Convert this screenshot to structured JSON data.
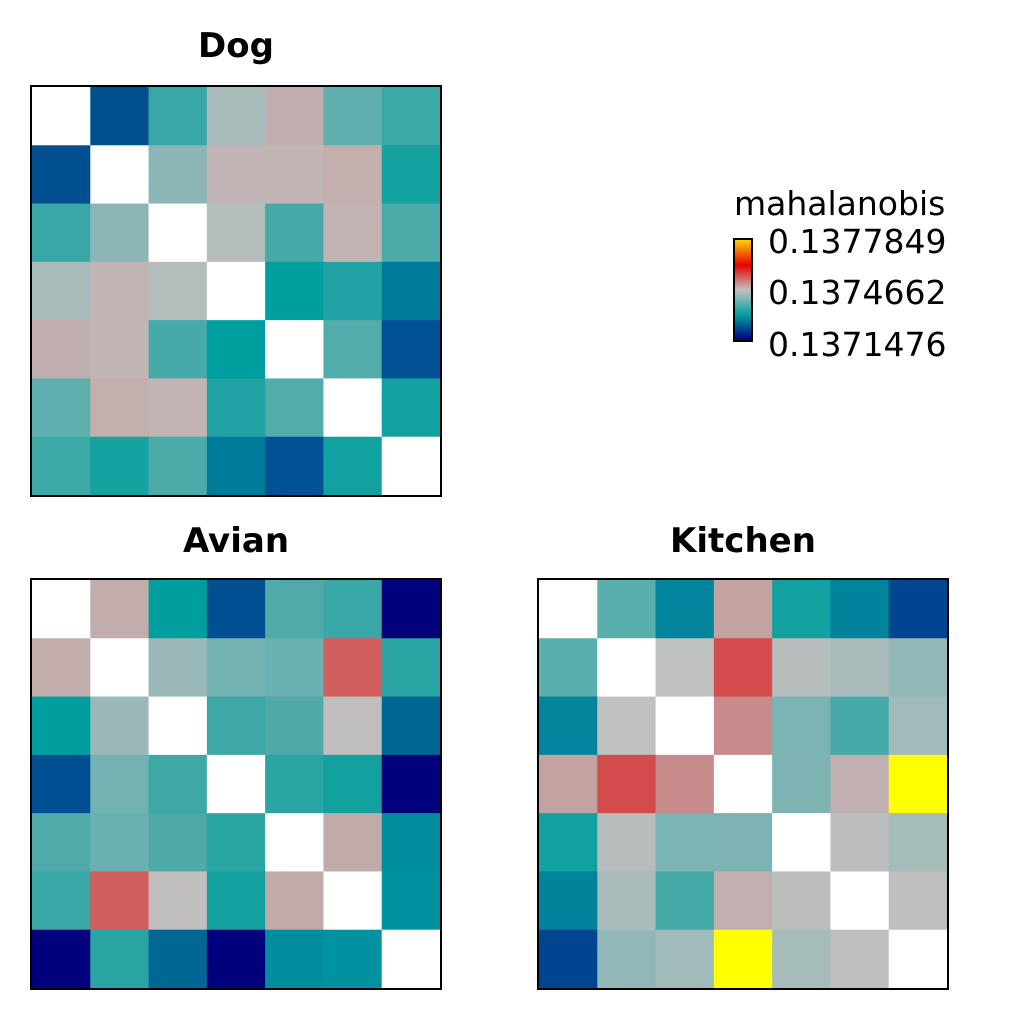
{
  "chart_data": [
    {
      "type": "heatmap",
      "title": "Dog",
      "rows": 7,
      "cols": 7,
      "cells": [
        [
          "#ffffff",
          "#00508f",
          "#38a7a6",
          "#aabcbb",
          "#c1aeae",
          "#5fafae",
          "#3da9a7"
        ],
        [
          "#00508f",
          "#ffffff",
          "#8cb6b5",
          "#c2b5b5",
          "#c2b6b5",
          "#c2afae",
          "#13a29f"
        ],
        [
          "#38a7a6",
          "#8cb6b5",
          "#ffffff",
          "#b4bdbc",
          "#45aaa8",
          "#c2b4b3",
          "#4aaba9"
        ],
        [
          "#aabcbb",
          "#c2b5b5",
          "#b4bdbc",
          "#ffffff",
          "#009f9f",
          "#20a3a2",
          "#007c9a"
        ],
        [
          "#c1aeae",
          "#c2b6b5",
          "#45aaa8",
          "#009f9f",
          "#ffffff",
          "#51acab",
          "#005195"
        ],
        [
          "#5fafae",
          "#c2afae",
          "#c2b4b3",
          "#20a3a2",
          "#51acab",
          "#ffffff",
          "#10a1a0"
        ],
        [
          "#3da9a7",
          "#13a29f",
          "#4aaba9",
          "#007c9a",
          "#005195",
          "#10a1a0",
          "#ffffff"
        ]
      ]
    },
    {
      "type": "heatmap",
      "title": "Avian",
      "rows": 7,
      "cols": 7,
      "cells": [
        [
          "#ffffff",
          "#c2acac",
          "#009e9f",
          "#004f93",
          "#4eaba9",
          "#3aa8a6",
          "#00007d"
        ],
        [
          "#c2acac",
          "#ffffff",
          "#9ab8b8",
          "#72b2b1",
          "#68b1b0",
          "#cf5e5d",
          "#2aa5a3"
        ],
        [
          "#009e9f",
          "#9ab8b8",
          "#ffffff",
          "#3da8a6",
          "#4ea9a8",
          "#c1bebe",
          "#006795"
        ],
        [
          "#004f93",
          "#72b2b1",
          "#3da8a6",
          "#ffffff",
          "#29a5a3",
          "#13a19f",
          "#00007d"
        ],
        [
          "#4eaba9",
          "#68b1b0",
          "#4ea9a8",
          "#29a5a3",
          "#ffffff",
          "#c2aaaa",
          "#008e9e"
        ],
        [
          "#3aa8a6",
          "#cf5e5d",
          "#c1bebe",
          "#13a19f",
          "#c2aaaa",
          "#ffffff",
          "#00929e"
        ],
        [
          "#00007d",
          "#2aa5a3",
          "#006795",
          "#00007d",
          "#008e9e",
          "#00929e",
          "#ffffff"
        ]
      ]
    },
    {
      "type": "heatmap",
      "title": "Kitchen",
      "rows": 7,
      "cols": 7,
      "cells": [
        [
          "#ffffff",
          "#59aeae",
          "#00859c",
          "#c2a3a2",
          "#10a1a0",
          "#00839b",
          "#004590"
        ],
        [
          "#59aeae",
          "#ffffff",
          "#bfc0c0",
          "#d34c4c",
          "#b7bcbc",
          "#a9bcbb",
          "#91b7b6"
        ],
        [
          "#00859c",
          "#bfc0c0",
          "#ffffff",
          "#c78b8b",
          "#7ab4b3",
          "#45aaa8",
          "#9fbbba"
        ],
        [
          "#c2a3a2",
          "#d34c4c",
          "#c78b8b",
          "#ffffff",
          "#7db4b3",
          "#c2b0b0",
          "#ffff00"
        ],
        [
          "#10a1a0",
          "#b7bcbc",
          "#7ab4b3",
          "#7db4b3",
          "#ffffff",
          "#bcbebe",
          "#a6bcbb"
        ],
        [
          "#00839b",
          "#a9bcbb",
          "#45aaa8",
          "#c2b0b0",
          "#bcbebe",
          "#ffffff",
          "#bebfbf"
        ],
        [
          "#004590",
          "#91b7b6",
          "#9fbbba",
          "#ffff00",
          "#a6bcbb",
          "#bebfbf",
          "#ffffff"
        ]
      ]
    }
  ],
  "legend": {
    "title": "mahalanobis",
    "max_label": "0.1377849",
    "mid_label": "0.1374662",
    "min_label": "0.1371476",
    "gradient": [
      "#ffd200",
      "#e80000",
      "#c2c2c2",
      "#009e9f",
      "#00007d"
    ]
  }
}
